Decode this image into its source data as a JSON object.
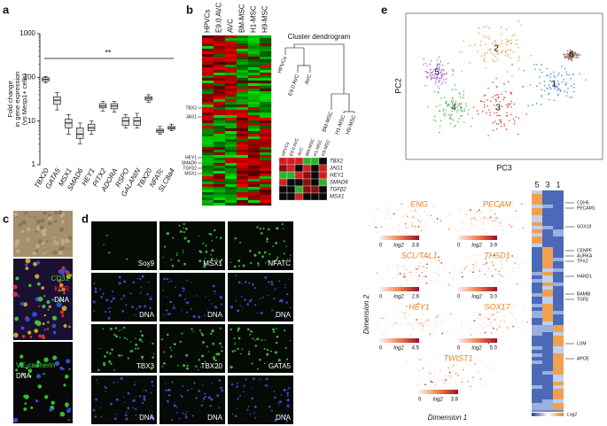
{
  "panel_labels": [
    "a",
    "b",
    "c",
    "d",
    "e"
  ],
  "chart_data": {
    "type": "box",
    "y_label": [
      "Fold change",
      "in gene expression",
      "(vs Mesp1+ cells)"
    ],
    "annotation": "**",
    "categories": [
      "TBX20",
      "GATA5",
      "MSX1",
      "SMAD6",
      "HEY1",
      "PITX2",
      "ADORA",
      "RSPO",
      "GALANIN",
      "TBX20",
      "NFATc",
      "SLC8a4"
    ],
    "median": [
      90,
      30,
      9,
      5,
      7,
      22,
      22,
      10,
      10,
      33,
      6,
      7
    ],
    "q1": [
      82,
      24,
      7,
      4,
      6,
      20,
      19,
      8,
      8,
      30,
      5.5,
      6.5
    ],
    "q3": [
      98,
      36,
      11,
      7,
      8.5,
      25,
      25,
      12,
      12,
      36,
      6.5,
      7.5
    ],
    "low": [
      75,
      18,
      5,
      3,
      5,
      17,
      16,
      7,
      7,
      27,
      5,
      6
    ],
    "high": [
      105,
      45,
      14,
      9,
      10,
      28,
      28,
      14,
      15,
      40,
      7.5,
      8.5
    ],
    "ylim": [
      1,
      1000
    ],
    "yticks": [
      1,
      10,
      100,
      1000
    ],
    "log_scale": true,
    "color": "#e0e0e0"
  },
  "heatmap_b": {
    "columns": [
      "HPVCs",
      "E9.0 AVC",
      "AVC",
      "BM-MSC",
      "H1-MSC",
      "H9-MSC"
    ],
    "genes": [
      "TBX2",
      "JAG1",
      "HEY1",
      "SMAD6",
      "TGFβ2",
      "MSX1"
    ]
  },
  "dendrogram": {
    "title": "Cluster dendrogram",
    "leaves": [
      "HPVCs",
      "E9.0 AVC",
      "AVC",
      "BM-MSC",
      "H1-MSC",
      "H9-MSC"
    ]
  },
  "mini_heatmap": {
    "columns": [
      "HPVCs",
      "E9.0 AVC",
      "AVC",
      "BM-MSC",
      "H1-MSC",
      "H9-MSC"
    ],
    "genes": [
      "TBX2",
      "JAG1",
      "HEY1",
      "SMAD6",
      "TGFβ2",
      "MSX1"
    ]
  },
  "micrographs_c": {
    "labels": [
      {
        "text": "CD31",
        "color": "#3ddc3d"
      },
      {
        "text": "KDR",
        "color": "#ff3030"
      },
      {
        "text": "DNA",
        "color": "#ffffff"
      },
      {
        "text": "VE-cadherin",
        "color": "#3ddc3d"
      },
      {
        "text": "DNA",
        "color": "#ffffff"
      }
    ]
  },
  "micrographs_d": {
    "labels": [
      "Sox9",
      "MSX1",
      "NFATC",
      "DNA",
      "DNA",
      "DNA",
      "TBX3",
      "TBX20",
      "GATA5",
      "DNA",
      "DNA",
      "DNA"
    ]
  },
  "tsne": {
    "x_label": "PC3",
    "y_label": "PC2",
    "clusters": [
      {
        "label": "1",
        "color": "#4a90d0"
      },
      {
        "label": "2",
        "color": "#f0a04b"
      },
      {
        "label": "3",
        "color": "#e04848"
      },
      {
        "label": "4",
        "color": "#58b858"
      },
      {
        "label": "5",
        "color": "#b070d8"
      },
      {
        "label": "6",
        "color": "#a07060"
      }
    ]
  },
  "feature_plots": {
    "x_label": "Dimension 1",
    "y_label": "Dimension 2",
    "plots": [
      {
        "gene": "ENG",
        "min": "0",
        "unit": "log2",
        "max": "3.8"
      },
      {
        "gene": "PECAM",
        "min": "0",
        "unit": "log2",
        "max": "3.9"
      },
      {
        "gene": "SCL/TAL1",
        "min": "0",
        "unit": "log2",
        "max": "2.6"
      },
      {
        "gene": "THSD1",
        "min": "0",
        "unit": "log2",
        "max": "3.0"
      },
      {
        "gene": "HEY1",
        "min": "0",
        "unit": "log2",
        "max": "4.5"
      },
      {
        "gene": "SOX17",
        "min": "0",
        "unit": "log2",
        "max": "5.0"
      },
      {
        "gene": "TWIST1",
        "min": "0",
        "unit": "log2",
        "max": "3.8"
      }
    ]
  },
  "heatmap_e": {
    "columns": [
      "5",
      "3",
      "1"
    ],
    "genes": [
      "CDH5",
      "PECAM1",
      "SOX18",
      "CENPF",
      "AURKA",
      "TPX2",
      "HAND1",
      "BAMBI",
      "TGFβ",
      "LUM",
      "APOE"
    ],
    "legend": "Log2"
  }
}
